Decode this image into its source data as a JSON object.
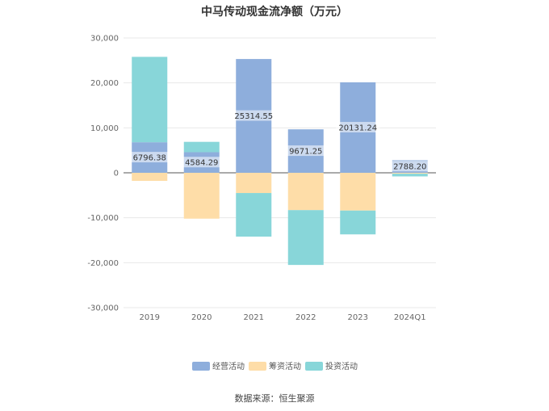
{
  "chart_data": {
    "type": "bar",
    "stacked": true,
    "title": "中马传动现金流净额（万元）",
    "categories": [
      "2019",
      "2020",
      "2021",
      "2022",
      "2023",
      "2024Q1"
    ],
    "series": [
      {
        "name": "经营活动",
        "color": "#8eaedc",
        "values": [
          6796.38,
          4584.29,
          25314.55,
          9671.25,
          20131.24,
          2788.2
        ]
      },
      {
        "name": "筹资活动",
        "color": "#fedda8",
        "values": [
          -1800,
          -10200,
          -4500,
          -8300,
          -8400,
          -200
        ]
      },
      {
        "name": "投资活动",
        "color": "#88d6d9",
        "values": [
          19000,
          2300,
          -9700,
          -12200,
          -5300,
          -600
        ]
      }
    ],
    "data_labels": [
      "6796.38",
      "4584.29",
      "25314.55",
      "9671.25",
      "20131.24",
      "2788.20"
    ],
    "ylim": [
      -30000,
      30000
    ],
    "yticks": [
      "30,000",
      "20,000",
      "10,000",
      "0",
      "-10,000",
      "-20,000",
      "-30,000"
    ],
    "ytick_values": [
      30000,
      20000,
      10000,
      0,
      -10000,
      -20000,
      -30000
    ],
    "grid": true,
    "legend_position": "bottom"
  },
  "source": "数据来源：恒生聚源"
}
